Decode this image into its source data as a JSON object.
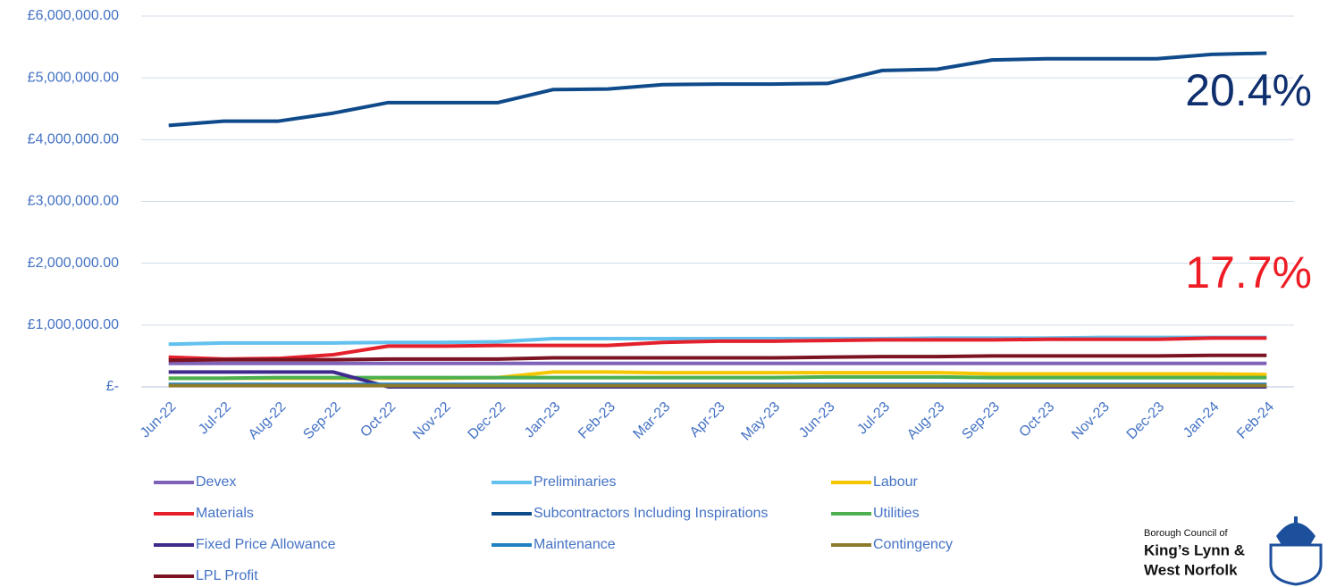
{
  "chart_data": {
    "type": "line",
    "categories": [
      "Jun-22",
      "Jul-22",
      "Aug-22",
      "Sep-22",
      "Oct-22",
      "Nov-22",
      "Dec-22",
      "Jan-23",
      "Feb-23",
      "Mar-23",
      "Apr-23",
      "May-23",
      "Jun-23",
      "Jul-23",
      "Aug-23",
      "Sep-23",
      "Oct-23",
      "Nov-23",
      "Dec-23",
      "Jan-24",
      "Feb-24"
    ],
    "ylim": [
      0,
      6000000
    ],
    "yticks": [
      {
        "value": 0,
        "label": "£-"
      },
      {
        "value": 1000000,
        "label": "£1,000,000.00"
      },
      {
        "value": 2000000,
        "label": "£2,000,000.00"
      },
      {
        "value": 3000000,
        "label": "£3,000,000.00"
      },
      {
        "value": 4000000,
        "label": "£4,000,000.00"
      },
      {
        "value": 5000000,
        "label": "£5,000,000.00"
      },
      {
        "value": 6000000,
        "label": "£6,000,000.00"
      }
    ],
    "grid": true,
    "series": [
      {
        "name": "Devex",
        "color": "#7f63b8",
        "values": [
          380000,
          380000,
          380000,
          380000,
          380000,
          380000,
          380000,
          380000,
          380000,
          380000,
          380000,
          380000,
          380000,
          380000,
          380000,
          380000,
          380000,
          380000,
          380000,
          380000,
          380000
        ]
      },
      {
        "name": "Preliminaries",
        "color": "#62c1ee",
        "values": [
          690000,
          710000,
          710000,
          710000,
          720000,
          720000,
          730000,
          780000,
          780000,
          780000,
          780000,
          780000,
          780000,
          780000,
          790000,
          790000,
          790000,
          800000,
          800000,
          800000,
          800000
        ]
      },
      {
        "name": "Labour",
        "color": "#f6c600",
        "values": [
          140000,
          140000,
          140000,
          140000,
          140000,
          140000,
          150000,
          240000,
          240000,
          230000,
          230000,
          230000,
          230000,
          230000,
          230000,
          210000,
          210000,
          210000,
          210000,
          210000,
          200000
        ]
      },
      {
        "name": "Materials",
        "color": "#e3202b",
        "values": [
          480000,
          450000,
          460000,
          520000,
          660000,
          660000,
          670000,
          670000,
          670000,
          720000,
          740000,
          740000,
          750000,
          760000,
          760000,
          760000,
          770000,
          770000,
          770000,
          790000,
          790000
        ]
      },
      {
        "name": "Subcontractors Including Inspirations",
        "color": "#0f4a8a",
        "values": [
          4230000,
          4300000,
          4300000,
          4430000,
          4600000,
          4600000,
          4600000,
          4810000,
          4820000,
          4890000,
          4900000,
          4900000,
          4910000,
          5120000,
          5140000,
          5290000,
          5310000,
          5310000,
          5310000,
          5380000,
          5400000
        ]
      },
      {
        "name": "Utilities",
        "color": "#4cb050",
        "values": [
          140000,
          140000,
          150000,
          150000,
          150000,
          150000,
          150000,
          150000,
          150000,
          150000,
          150000,
          150000,
          160000,
          160000,
          160000,
          150000,
          150000,
          150000,
          150000,
          150000,
          150000
        ]
      },
      {
        "name": "Fixed Price Allowance",
        "color": "#3e2a8c",
        "values": [
          240000,
          240000,
          240000,
          240000,
          0,
          0,
          0,
          0,
          0,
          0,
          0,
          0,
          0,
          0,
          0,
          0,
          0,
          0,
          0,
          0,
          0
        ]
      },
      {
        "name": "Maintenance",
        "color": "#1f80c2",
        "values": [
          40000,
          40000,
          40000,
          40000,
          40000,
          40000,
          40000,
          40000,
          40000,
          40000,
          40000,
          40000,
          40000,
          40000,
          40000,
          40000,
          40000,
          40000,
          40000,
          40000,
          40000
        ]
      },
      {
        "name": "Contingency",
        "color": "#8d7b2c",
        "values": [
          20000,
          20000,
          20000,
          20000,
          20000,
          20000,
          20000,
          20000,
          20000,
          20000,
          20000,
          20000,
          20000,
          20000,
          20000,
          20000,
          20000,
          20000,
          20000,
          20000,
          20000
        ]
      },
      {
        "name": "LPL Profit",
        "color": "#7b1322",
        "values": [
          430000,
          440000,
          440000,
          440000,
          450000,
          450000,
          450000,
          470000,
          470000,
          470000,
          470000,
          470000,
          480000,
          490000,
          490000,
          500000,
          500000,
          500000,
          500000,
          510000,
          510000
        ]
      }
    ],
    "annotations": [
      {
        "text": "20.4%",
        "color": "#0f2f6e"
      },
      {
        "text": "17.7%",
        "color": "#ee1c24"
      }
    ]
  },
  "logo": {
    "lines": [
      "Borough Council of",
      "King’s Lynn &",
      "West Norfolk"
    ]
  }
}
